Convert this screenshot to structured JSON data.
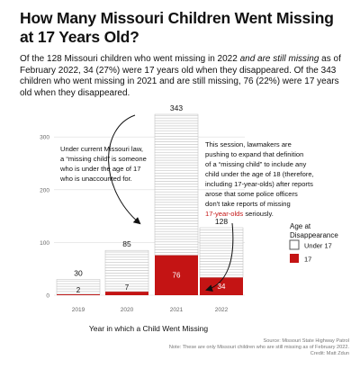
{
  "title": "How Many Missouri Children Went Missing at 17 Years Old?",
  "intro": {
    "part1": "Of the 128 Missouri children who went missing in 2022 ",
    "italic": "and are still missing",
    "part2": " as of February 2022, 34 (27%) were 17 years old when they disappeared. Of the 343 children who went missing in 2021 and are still missing, 76 (22%) were 17 years old when they disappeared."
  },
  "annotations": {
    "left": [
      "Under current Missouri law,",
      "a “missing child” is someone",
      "who is under the age of 17",
      "who is unaccounted for."
    ],
    "right": [
      "This session, lawmakers are",
      "pushing to expand that definition",
      "of a “missing child” to include any",
      "child under the age of 18 (therefore,",
      "including 17-year-olds) after reports",
      "arose that some police officers",
      "don't take reports of missing"
    ],
    "right_highlight": "17-year-olds",
    "right_end": " seriously."
  },
  "legend": {
    "title_line1": "Age at",
    "title_line2": "Disappearance",
    "items": [
      "Under 17",
      "17"
    ]
  },
  "colors": {
    "seventeen": "#c41414",
    "under17_fill": "#ffffff",
    "under17_stroke": "#bdbdbd",
    "highlight_text": "#c41414",
    "axis_text": "#666666",
    "grid": "#dddddd"
  },
  "chart_data": {
    "type": "bar",
    "stacked": true,
    "categories": [
      "2019",
      "2020",
      "2021",
      "2022"
    ],
    "series": [
      {
        "name": "Under 17",
        "values": [
          28,
          78,
          267,
          94
        ]
      },
      {
        "name": "17",
        "values": [
          2,
          7,
          76,
          34
        ]
      }
    ],
    "totals": [
      30,
      85,
      343,
      128
    ],
    "xlabel": "Year in which a Child Went Missing",
    "ylabel": "",
    "ylim": [
      0,
      343
    ],
    "yticks": [
      0,
      100,
      200,
      300
    ],
    "grid": true
  },
  "source": {
    "line1": "Source: Missouri State Highway Patrol",
    "line2": "Note: These are only Missouri children who are still missing as of February 2022.",
    "line3": "Credit: Matt Zdun"
  }
}
